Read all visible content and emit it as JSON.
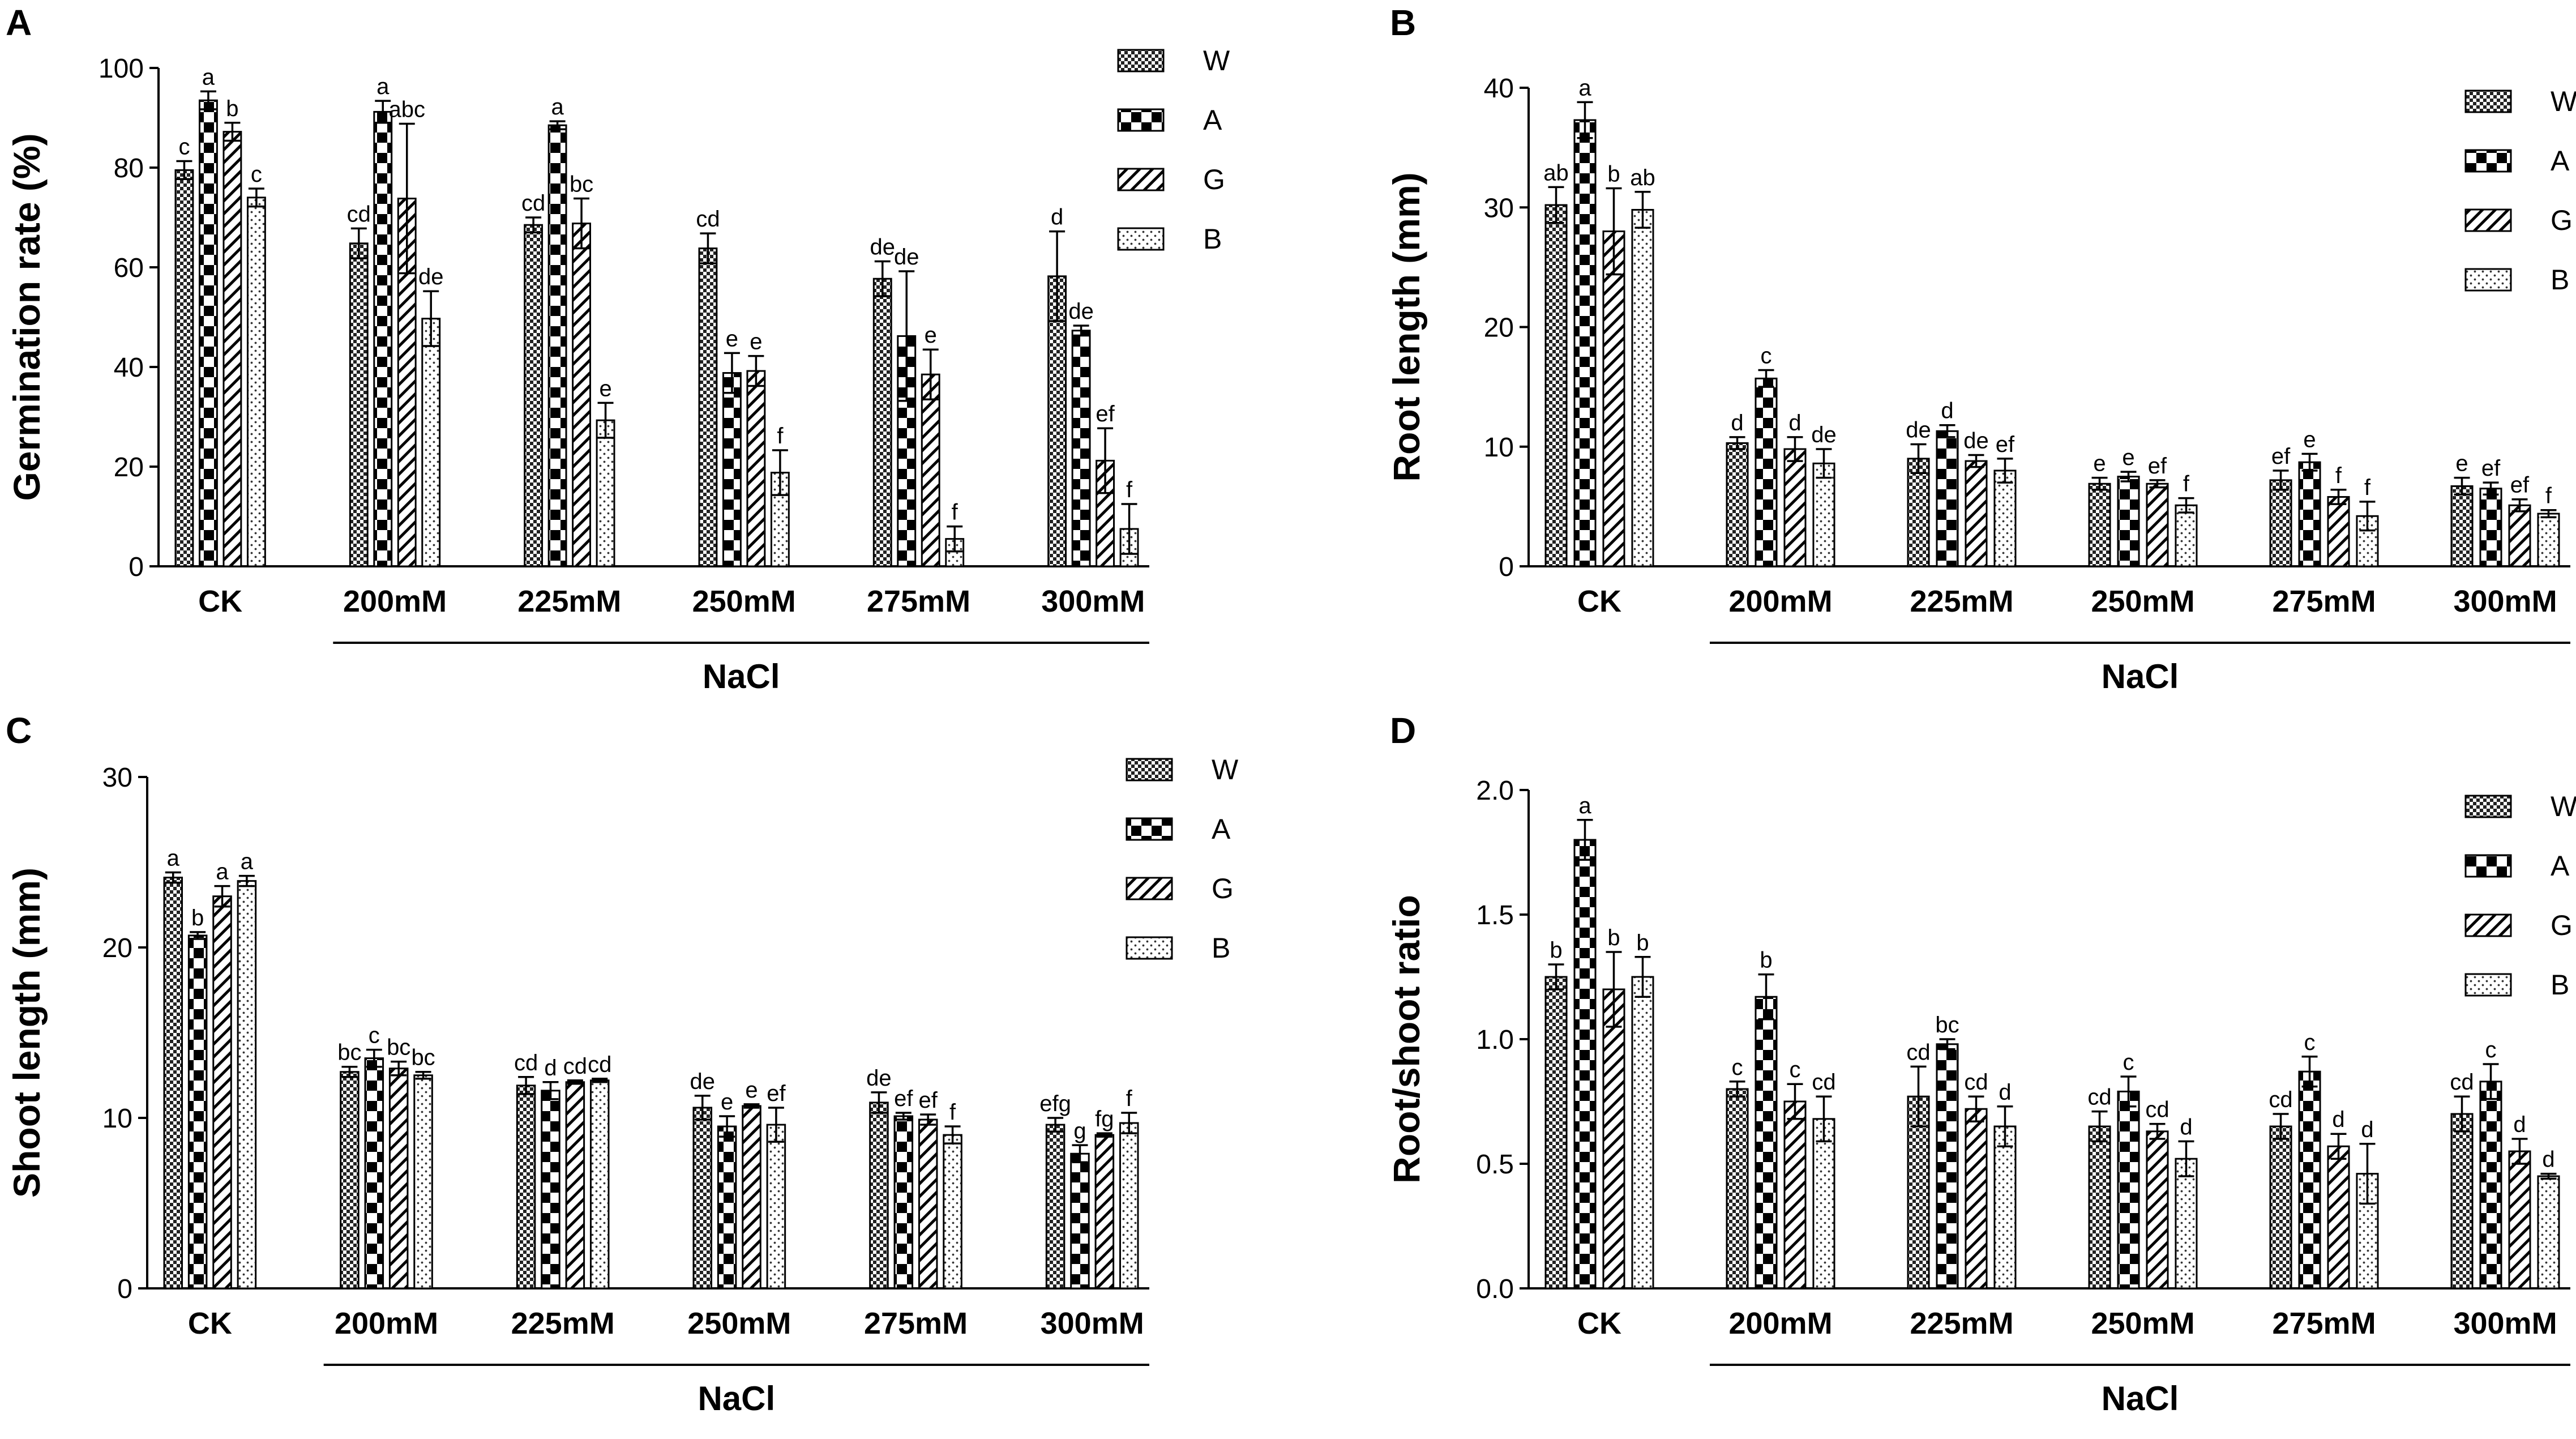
{
  "figure": {
    "group_label": "NaCl"
  },
  "chart_data": [
    {
      "panel": "A",
      "type": "bar",
      "ylabel": "Germination rate (%)",
      "ylim": [
        0,
        100
      ],
      "yticks": [
        "0",
        "20",
        "40",
        "60",
        "80",
        "100"
      ],
      "categories": [
        "CK",
        "200mM",
        "225mM",
        "250mM",
        "275mM",
        "300mM"
      ],
      "group_label": "NaCl",
      "legend_position": "top-right",
      "series": [
        {
          "name": "W",
          "pattern": "fine-check",
          "values": [
            79.5,
            64.8,
            68.5,
            63.8,
            57.7,
            58.2
          ],
          "errors": [
            1.8,
            3,
            1.5,
            3,
            3.5,
            9
          ],
          "letters": [
            "c",
            "cd",
            "cd",
            "cd",
            "de",
            "d"
          ]
        },
        {
          "name": "A",
          "pattern": "coarse-check",
          "values": [
            93.5,
            91.2,
            88.5,
            38.8,
            46.2,
            47.3
          ],
          "errors": [
            1.8,
            2.2,
            0.8,
            4,
            13,
            1
          ],
          "letters": [
            "a",
            "a",
            "a",
            "e",
            "de",
            "de"
          ]
        },
        {
          "name": "G",
          "pattern": "diagonal",
          "values": [
            87.2,
            73.8,
            68.8,
            39.2,
            38.5,
            21.2
          ],
          "errors": [
            1.8,
            15,
            5,
            3,
            5,
            6.5
          ],
          "letters": [
            "b",
            "abc",
            "bc",
            "e",
            "e",
            "ef"
          ]
        },
        {
          "name": "B",
          "pattern": "dots",
          "values": [
            74,
            49.7,
            29.3,
            18.8,
            5.5,
            7.5
          ],
          "errors": [
            1.8,
            5.5,
            3.5,
            4.5,
            2.5,
            5
          ],
          "letters": [
            "c",
            "de",
            "e",
            "f",
            "f",
            "f"
          ]
        }
      ]
    },
    {
      "panel": "B",
      "type": "bar",
      "ylabel": "Root length (mm)",
      "ylim": [
        0,
        40
      ],
      "yticks": [
        "0",
        "10",
        "20",
        "30",
        "40"
      ],
      "categories": [
        "CK",
        "200mM",
        "225mM",
        "250mM",
        "275mM",
        "300mM"
      ],
      "group_label": "NaCl",
      "legend_position": "top-right",
      "series": [
        {
          "name": "W",
          "pattern": "fine-check",
          "values": [
            30.2,
            10.3,
            9,
            6.9,
            7.2,
            6.7
          ],
          "errors": [
            1.5,
            0.5,
            1.2,
            0.5,
            0.8,
            0.7
          ],
          "letters": [
            "ab",
            "d",
            "de",
            "e",
            "ef",
            "e"
          ]
        },
        {
          "name": "A",
          "pattern": "coarse-check",
          "values": [
            37.3,
            15.7,
            11.3,
            7.5,
            8.7,
            6.5
          ],
          "errors": [
            1.5,
            0.7,
            0.5,
            0.4,
            0.7,
            0.5
          ],
          "letters": [
            "a",
            "c",
            "d",
            "e",
            "e",
            "ef"
          ]
        },
        {
          "name": "G",
          "pattern": "diagonal",
          "values": [
            28,
            9.8,
            8.8,
            6.9,
            5.8,
            5.1
          ],
          "errors": [
            3.6,
            1,
            0.5,
            0.3,
            0.6,
            0.5
          ],
          "letters": [
            "b",
            "d",
            "de",
            "ef",
            "f",
            "ef"
          ]
        },
        {
          "name": "B",
          "pattern": "dots",
          "values": [
            29.8,
            8.6,
            8,
            5.1,
            4.2,
            4.4
          ],
          "errors": [
            1.5,
            1.2,
            1,
            0.6,
            1.2,
            0.3
          ],
          "letters": [
            "ab",
            "de",
            "ef",
            "f",
            "f",
            "f"
          ]
        }
      ]
    },
    {
      "panel": "C",
      "type": "bar",
      "ylabel": "Shoot length (mm)",
      "ylim": [
        0,
        30
      ],
      "yticks": [
        "0",
        "10",
        "20",
        "30"
      ],
      "categories": [
        "CK",
        "200mM",
        "225mM",
        "250mM",
        "275mM",
        "300mM"
      ],
      "group_label": "NaCl",
      "legend_position": "top-right",
      "series": [
        {
          "name": "W",
          "pattern": "fine-check",
          "values": [
            24.1,
            12.7,
            11.9,
            10.6,
            10.9,
            9.6
          ],
          "errors": [
            0.3,
            0.3,
            0.5,
            0.7,
            0.6,
            0.4
          ],
          "letters": [
            "a",
            "bc",
            "cd",
            "de",
            "de",
            "efg"
          ]
        },
        {
          "name": "A",
          "pattern": "coarse-check",
          "values": [
            20.7,
            13.5,
            11.6,
            9.5,
            10.1,
            7.9
          ],
          "errors": [
            0.2,
            0.5,
            0.5,
            0.6,
            0.2,
            0.5
          ],
          "letters": [
            "b",
            "c",
            "d",
            "e",
            "ef",
            "g"
          ]
        },
        {
          "name": "G",
          "pattern": "diagonal",
          "values": [
            23,
            12.9,
            12.1,
            10.7,
            9.9,
            9
          ],
          "errors": [
            0.6,
            0.4,
            0.1,
            0.1,
            0.3,
            0.1
          ],
          "letters": [
            "a",
            "bc",
            "cd",
            "e",
            "ef",
            "fg"
          ]
        },
        {
          "name": "B",
          "pattern": "dots",
          "values": [
            23.9,
            12.5,
            12.2,
            9.6,
            9,
            9.7
          ],
          "errors": [
            0.3,
            0.2,
            0.1,
            1,
            0.5,
            0.6
          ],
          "letters": [
            "a",
            "bc",
            "cd",
            "ef",
            "f",
            "f"
          ]
        }
      ]
    },
    {
      "panel": "D",
      "type": "bar",
      "ylabel": "Root/shoot ratio",
      "ylim": [
        0,
        2
      ],
      "yticks": [
        "0.0",
        "0.5",
        "1.0",
        "1.5",
        "2.0"
      ],
      "categories": [
        "CK",
        "200mM",
        "225mM",
        "250mM",
        "275mM",
        "300mM"
      ],
      "group_label": "NaCl",
      "legend_position": "top-right",
      "series": [
        {
          "name": "W",
          "pattern": "fine-check",
          "values": [
            1.25,
            0.8,
            0.77,
            0.65,
            0.65,
            0.7
          ],
          "errors": [
            0.05,
            0.03,
            0.12,
            0.06,
            0.05,
            0.07
          ],
          "letters": [
            "b",
            "c",
            "cd",
            "cd",
            "cd",
            "cd"
          ]
        },
        {
          "name": "A",
          "pattern": "coarse-check",
          "values": [
            1.8,
            1.17,
            0.98,
            0.79,
            0.87,
            0.83
          ],
          "errors": [
            0.08,
            0.09,
            0.02,
            0.06,
            0.06,
            0.07
          ],
          "letters": [
            "a",
            "b",
            "bc",
            "c",
            "c",
            "c"
          ]
        },
        {
          "name": "G",
          "pattern": "diagonal",
          "values": [
            1.2,
            0.75,
            0.72,
            0.63,
            0.57,
            0.55
          ],
          "errors": [
            0.15,
            0.07,
            0.05,
            0.03,
            0.05,
            0.05
          ],
          "letters": [
            "b",
            "c",
            "cd",
            "cd",
            "d",
            "d"
          ]
        },
        {
          "name": "B",
          "pattern": "dots",
          "values": [
            1.25,
            0.68,
            0.65,
            0.52,
            0.46,
            0.45
          ],
          "errors": [
            0.08,
            0.09,
            0.08,
            0.07,
            0.12,
            0.01
          ],
          "letters": [
            "b",
            "cd",
            "d",
            "d",
            "d",
            "d"
          ]
        }
      ]
    }
  ]
}
